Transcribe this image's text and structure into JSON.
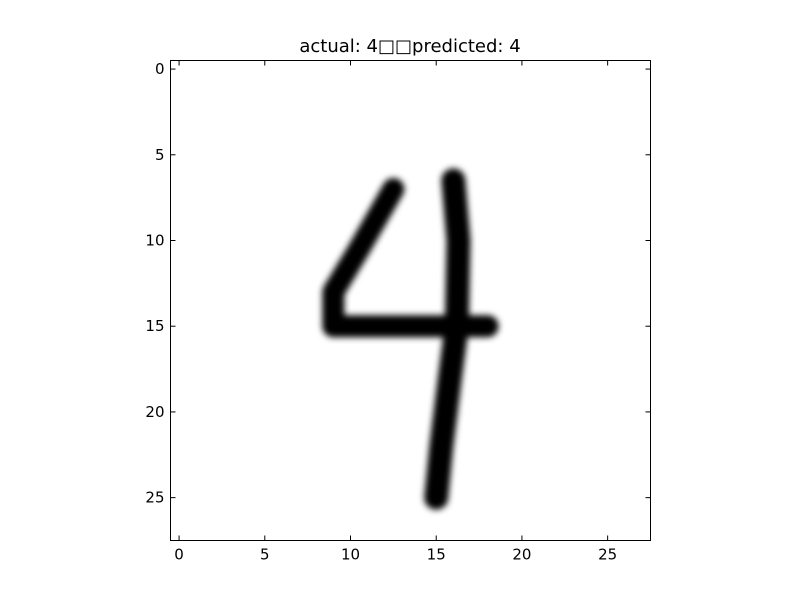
{
  "chart_data": {
    "type": "heatmap",
    "title": "actual: 4□□predicted: 4",
    "xlabel": "",
    "ylabel": "",
    "grid": false,
    "colormap": "gray_r",
    "xlim": [
      -0.5,
      27.5
    ],
    "ylim": [
      27.5,
      -0.5
    ],
    "xticks": [
      0,
      5,
      10,
      15,
      20,
      25
    ],
    "yticks": [
      0,
      5,
      10,
      15,
      20,
      25
    ],
    "image_size": [
      28,
      28
    ],
    "digit": {
      "actual": 4,
      "predicted": 4
    },
    "strokes": [
      {
        "name": "left-diagonal",
        "points": [
          [
            12.5,
            7
          ],
          [
            10.5,
            10.5
          ],
          [
            9,
            13
          ],
          [
            9,
            15
          ]
        ]
      },
      {
        "name": "crossbar",
        "points": [
          [
            9,
            15
          ],
          [
            13,
            15
          ],
          [
            18,
            15
          ]
        ]
      },
      {
        "name": "vertical",
        "points": [
          [
            16,
            6.5
          ],
          [
            16.3,
            10
          ],
          [
            16.2,
            15
          ],
          [
            15.8,
            18
          ],
          [
            15.3,
            22
          ],
          [
            15,
            25
          ]
        ]
      }
    ]
  }
}
